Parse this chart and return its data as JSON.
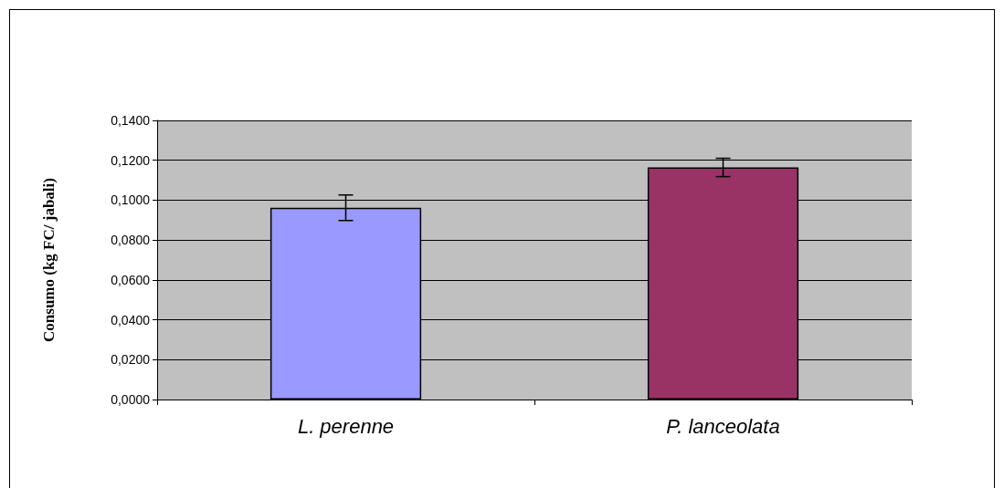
{
  "chart_data": {
    "type": "bar",
    "ylabel": "Consumo (kg FC/ jabali)",
    "categories": [
      "L. perenne",
      "P. lanceolata"
    ],
    "values": [
      0.0962,
      0.1164
    ],
    "colors": [
      "#9999ff",
      "#993366"
    ],
    "errors": [
      0.0064,
      0.0046
    ],
    "ylim": [
      0,
      0.14
    ],
    "yticks": [
      {
        "value": 0,
        "label": "0,0000"
      },
      {
        "value": 0.02,
        "label": "0,0200"
      },
      {
        "value": 0.04,
        "label": "0,0400"
      },
      {
        "value": 0.06,
        "label": "0,0600"
      },
      {
        "value": 0.08,
        "label": "0,0800"
      },
      {
        "value": 0.1,
        "label": "0,1000"
      },
      {
        "value": 0.12,
        "label": "0,1200"
      },
      {
        "value": 0.14,
        "label": "0,1400"
      }
    ],
    "grid": "y"
  }
}
